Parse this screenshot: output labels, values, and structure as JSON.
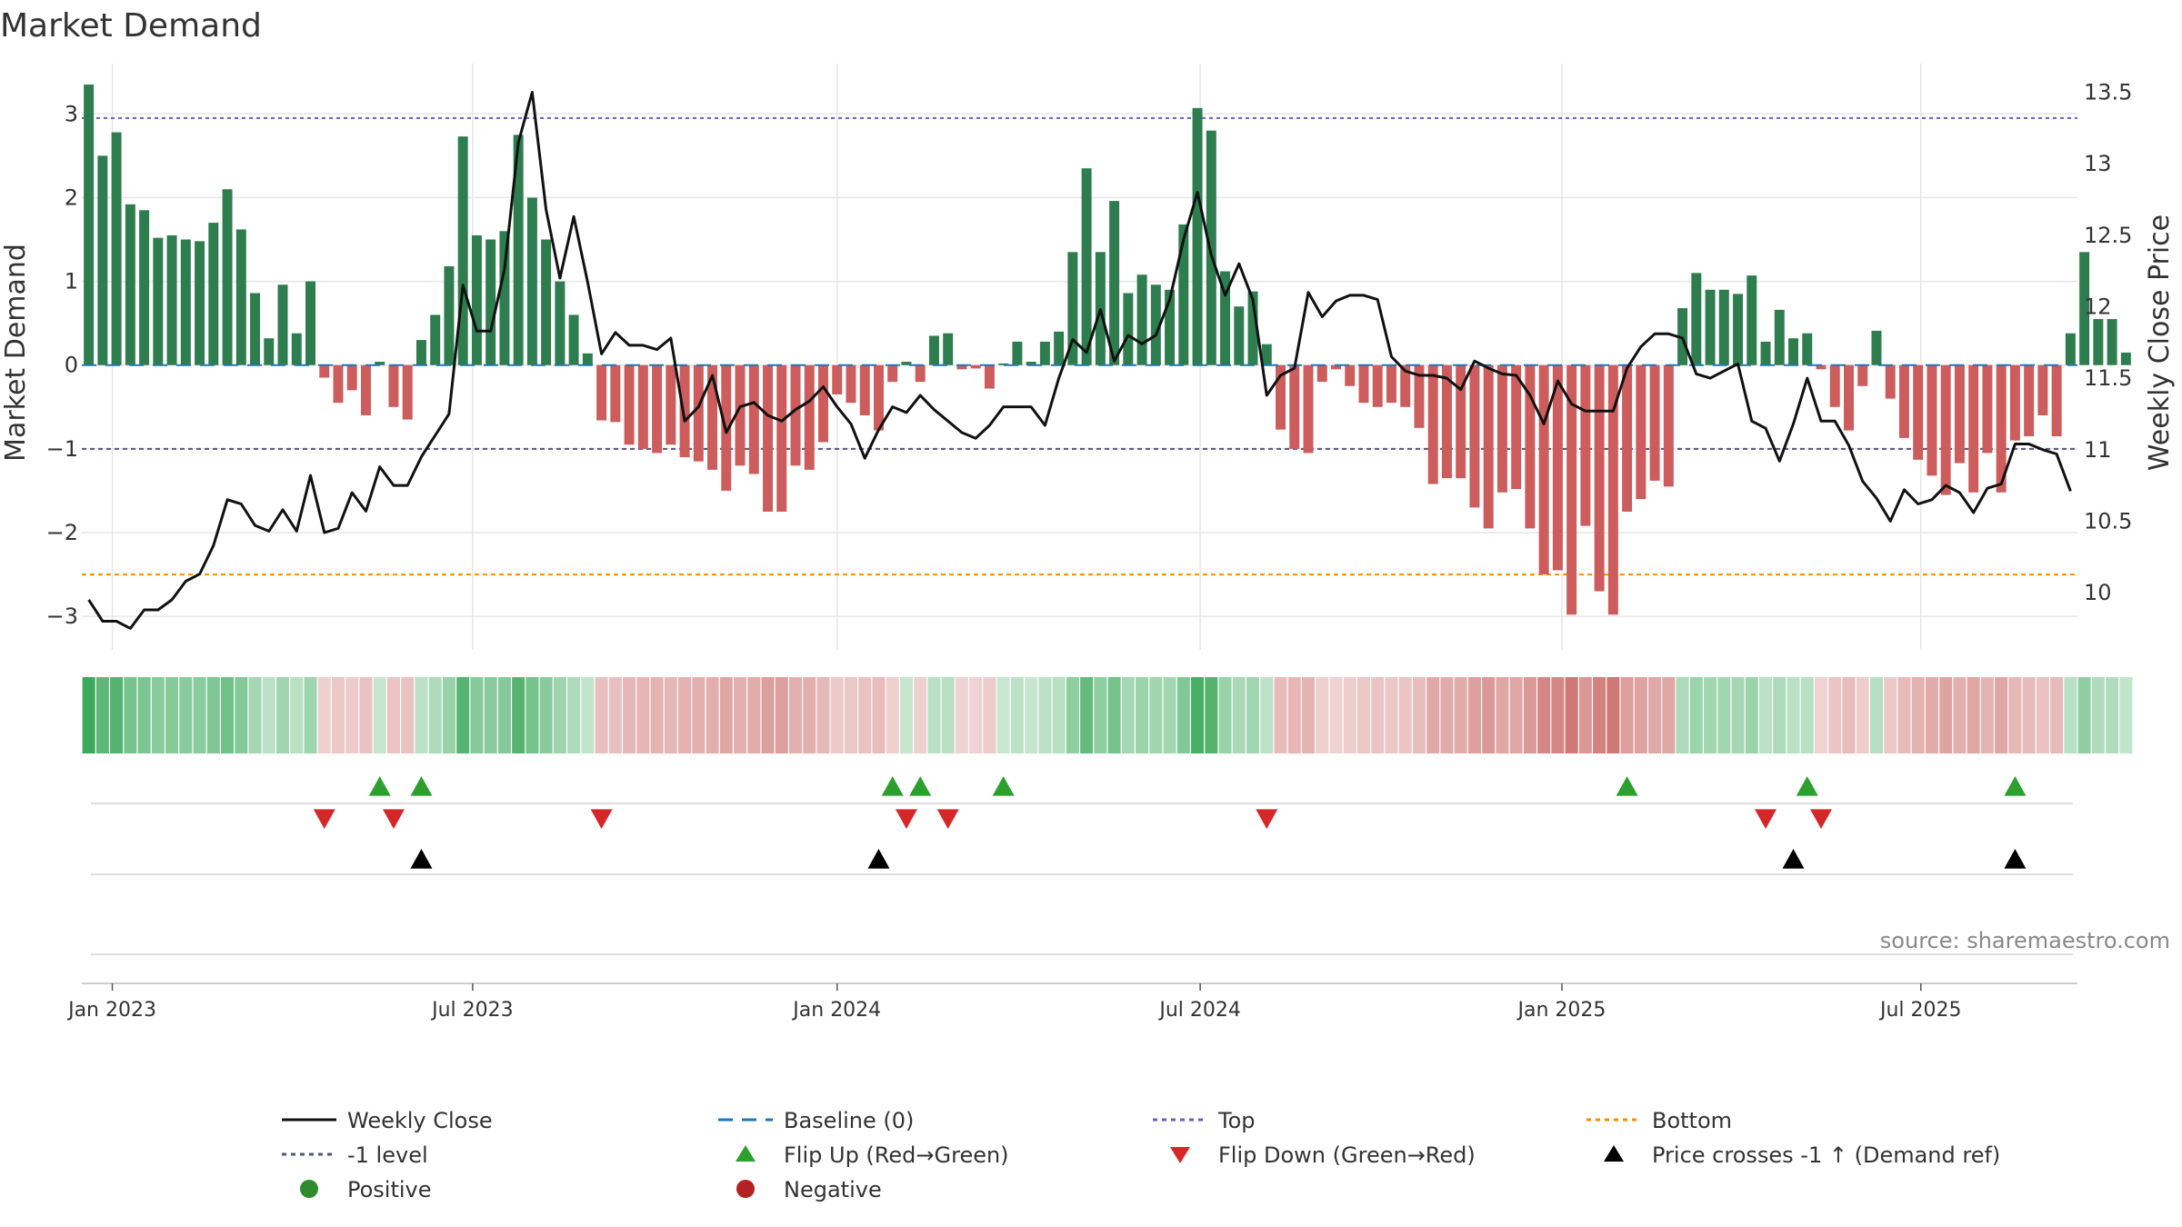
{
  "chart_data": {
    "type": "bar",
    "title": "Market Demand",
    "ylabel_left": "Market Demand",
    "ylabel_right": "Weekly Close Price",
    "left_axis": {
      "ylim": [
        -3.4,
        3.6
      ],
      "ticks": [
        3,
        2,
        1,
        0,
        -1,
        -2,
        -3
      ],
      "tick_labels": [
        "3",
        "2",
        "1",
        "0",
        "−1",
        "−2",
        "−3"
      ]
    },
    "right_axis": {
      "ylim": [
        9.6,
        13.7
      ],
      "ticks": [
        13.5,
        13,
        12.5,
        12,
        11.5,
        11,
        10.5,
        10
      ],
      "tick_labels": [
        "13.5",
        "13",
        "12.5",
        "12",
        "11.5",
        "11",
        "10.5",
        "10"
      ]
    },
    "reference_levels": {
      "baseline": 0,
      "top": 2.95,
      "minus_one": -1,
      "bottom": -2.5
    },
    "x_range": [
      0,
      144
    ],
    "date_ticks": [
      {
        "label": "Jan 2023",
        "x": 2.2
      },
      {
        "label": "Jul 2023",
        "x": 28.2
      },
      {
        "label": "Jan 2024",
        "x": 54.5
      },
      {
        "label": "Jul 2024",
        "x": 80.7
      },
      {
        "label": "Jan 2025",
        "x": 106.8
      },
      {
        "label": "Jul 2025",
        "x": 132.7
      }
    ],
    "series": [
      {
        "name": "Market Demand",
        "values": [
          3.35,
          2.5,
          2.78,
          1.92,
          1.85,
          1.52,
          1.55,
          1.5,
          1.48,
          1.7,
          2.1,
          1.62,
          0.86,
          0.32,
          0.96,
          0.38,
          1.0,
          -0.15,
          -0.45,
          -0.3,
          -0.6,
          0.04,
          -0.5,
          -0.65,
          0.3,
          0.6,
          1.18,
          2.73,
          1.55,
          1.5,
          1.6,
          2.75,
          2.0,
          1.5,
          1.0,
          0.6,
          0.14,
          -0.66,
          -0.68,
          -0.95,
          -1.0,
          -1.05,
          -0.95,
          -1.1,
          -1.15,
          -1.25,
          -1.5,
          -1.2,
          -1.3,
          -1.75,
          -1.75,
          -1.2,
          -1.25,
          -0.92,
          -0.35,
          -0.45,
          -0.6,
          -0.78,
          -0.2,
          0.04,
          -0.2,
          0.35,
          0.38,
          -0.05,
          -0.04,
          -0.28,
          0.02,
          0.28,
          0.04,
          0.28,
          0.4,
          1.35,
          2.35,
          1.35,
          1.96,
          0.86,
          1.08,
          0.96,
          0.9,
          1.68,
          3.07,
          2.8,
          1.12,
          0.7,
          0.88,
          0.25,
          -0.77,
          -1.0,
          -1.05,
          -0.2,
          -0.05,
          -0.25,
          -0.45,
          -0.5,
          -0.45,
          -0.5,
          -0.75,
          -1.42,
          -1.35,
          -1.35,
          -1.7,
          -1.95,
          -1.52,
          -1.48,
          -1.95,
          -2.5,
          -2.45,
          -2.98,
          -1.92,
          -2.7,
          -2.98,
          -1.75,
          -1.6,
          -1.38,
          -1.45,
          0.68,
          1.1,
          0.9,
          0.9,
          0.85,
          1.07,
          0.28,
          0.66,
          0.32,
          0.38,
          -0.05,
          -0.5,
          -0.78,
          -0.25,
          0.41,
          -0.4,
          -0.87,
          -1.13,
          -1.32,
          -1.55,
          -1.17,
          -1.52,
          -1.05,
          -1.52,
          -0.9,
          -0.85,
          -0.6,
          -0.85,
          0.38,
          1.35,
          0.55,
          0.55,
          0.15
        ]
      },
      {
        "name": "Weekly Close",
        "values": [
          9.95,
          9.8,
          9.8,
          9.75,
          9.88,
          9.88,
          9.95,
          10.08,
          10.13,
          10.33,
          10.65,
          10.62,
          10.47,
          10.43,
          10.58,
          10.43,
          10.82,
          10.42,
          10.45,
          10.7,
          10.57,
          10.88,
          10.75,
          10.75,
          10.95,
          11.1,
          11.25,
          12.15,
          11.83,
          11.83,
          12.26,
          13.15,
          13.5,
          12.68,
          12.2,
          12.63,
          12.17,
          11.67,
          11.82,
          11.73,
          11.73,
          11.7,
          11.78,
          11.2,
          11.3,
          11.52,
          11.12,
          11.3,
          11.33,
          11.24,
          11.2,
          11.28,
          11.34,
          11.44,
          11.3,
          11.18,
          10.94,
          11.14,
          11.3,
          11.26,
          11.38,
          11.28,
          11.2,
          11.12,
          11.08,
          11.17,
          11.3,
          11.3,
          11.3,
          11.17,
          11.5,
          11.77,
          11.68,
          11.98,
          11.62,
          11.8,
          11.74,
          11.8,
          12.05,
          12.47,
          12.8,
          12.36,
          12.08,
          12.3,
          12.05,
          11.38,
          11.52,
          11.57,
          12.1,
          11.93,
          12.04,
          12.08,
          12.08,
          12.05,
          11.65,
          11.55,
          11.52,
          11.52,
          11.5,
          11.42,
          11.62,
          11.57,
          11.53,
          11.52,
          11.38,
          11.18,
          11.48,
          11.32,
          11.27,
          11.27,
          11.27,
          11.57,
          11.72,
          11.81,
          11.81,
          11.78,
          11.53,
          11.5,
          11.55,
          11.6,
          11.2,
          11.15,
          10.92,
          11.18,
          11.5,
          11.2,
          11.2,
          11.03,
          10.78,
          10.66,
          10.5,
          10.72,
          10.62,
          10.65,
          10.75,
          10.7,
          10.56,
          10.73,
          10.76,
          11.04,
          11.04,
          11.0,
          10.97,
          10.71
        ]
      }
    ],
    "flip_up": [
      21.5,
      24.5,
      58.5,
      60.5,
      66.5,
      111.5,
      124.5,
      139.5
    ],
    "flip_down": [
      17.5,
      22.5,
      37.5,
      59.5,
      62.5,
      85.5,
      121.5,
      125.5
    ],
    "price_cross": [
      24.5,
      57.5,
      123.5,
      139.5
    ],
    "source": "source: sharemaestro.com",
    "legend": [
      {
        "label": "Weekly Close",
        "kind": "line",
        "color": "#111111"
      },
      {
        "label": "Baseline (0)",
        "kind": "dash",
        "color": "#1f77b4"
      },
      {
        "label": "Top",
        "kind": "dot",
        "color": "#6a5acd"
      },
      {
        "label": "Bottom",
        "kind": "dot",
        "color": "#ff8c00"
      },
      {
        "label": "-1 level",
        "kind": "dot",
        "color": "#555577"
      },
      {
        "label": "Flip Up (Red→Green)",
        "kind": "tri-up",
        "color": "#2ca02c"
      },
      {
        "label": "Flip Down (Green→Red)",
        "kind": "tri-down",
        "color": "#d62728"
      },
      {
        "label": "Price crosses -1 ↑ (Demand ref)",
        "kind": "tri-up",
        "color": "#000000"
      },
      {
        "label": "Positive",
        "kind": "circle",
        "color": "#2e8b2e"
      },
      {
        "label": "Negative",
        "kind": "circle",
        "color": "#b22222"
      }
    ],
    "colors": {
      "positive": "#2e7d4f",
      "negative": "#cd5c5c",
      "heat_pos": "#3aa85a",
      "heat_neg": "#c0504d",
      "grid": "#e6e6e6"
    }
  }
}
